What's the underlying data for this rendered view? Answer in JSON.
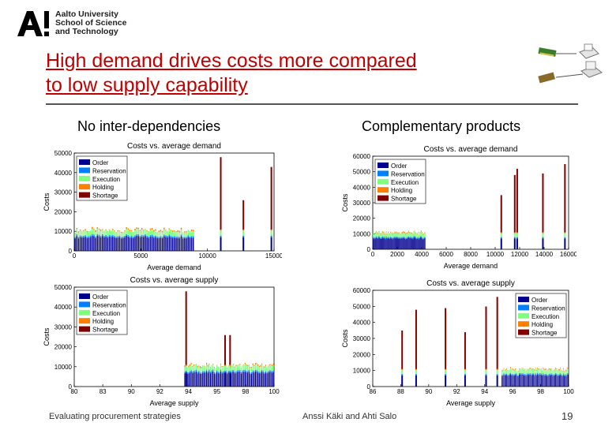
{
  "header": {
    "logo_lines": [
      "Aalto University",
      "School of Science",
      "and Technology"
    ],
    "title_line1": "High demand drives costs more compared",
    "title_line2": "to low supply capability"
  },
  "columns": {
    "left": "No inter-dependencies",
    "right": "Complementary products"
  },
  "footer": {
    "left": "Evaluating procurement strategies",
    "middle": "Anssi Käki and Ahti Salo",
    "page": "19"
  },
  "colors": {
    "title": "#c00000",
    "order": "#00008f",
    "reservation": "#0080ff",
    "execution": "#80ff80",
    "holding": "#ff8000",
    "shortage": "#800000"
  },
  "chart_data": [
    {
      "id": "left-demand",
      "type": "bar",
      "stacked": true,
      "title": "Costs vs. average demand",
      "xlabel": "Average demand",
      "ylabel": "Costs",
      "xlim": [
        0,
        15000
      ],
      "ylim": [
        0,
        50000
      ],
      "xticks": [
        "0",
        "5000",
        "10000",
        "15000"
      ],
      "yticks": [
        "0",
        "10000",
        "20000",
        "30000",
        "40000",
        "50000"
      ],
      "legend": [
        "Order",
        "Reservation",
        "Execution",
        "Holding",
        "Shortage"
      ],
      "legend_position": "top-left",
      "base_band": {
        "from": 0,
        "to": 9000,
        "order": 7000,
        "reservation": 800,
        "execution": 2500,
        "holding": 600
      },
      "spikes": [
        {
          "x": 11000,
          "shortage": 37000
        },
        {
          "x": 12700,
          "shortage": 15000
        },
        {
          "x": 14800,
          "shortage": 32000
        }
      ]
    },
    {
      "id": "left-supply",
      "type": "bar",
      "stacked": true,
      "title": "Costs vs. average supply",
      "xlabel": "Average supply",
      "ylabel": "Costs",
      "xlim": [
        80,
        100
      ],
      "ylim": [
        0,
        50000
      ],
      "xticks": [
        "80",
        "83",
        "90",
        "92",
        "94",
        "95",
        "98",
        "100"
      ],
      "yticks": [
        "0",
        "10000",
        "20000",
        "30000",
        "40000",
        "50000"
      ],
      "legend": [
        "Order",
        "Reservation",
        "Execution",
        "Holding",
        "Shortage"
      ],
      "legend_position": "top-left",
      "base_band": {
        "from": 91,
        "to": 100,
        "order": 7000,
        "reservation": 800,
        "execution": 2500,
        "holding": 600
      },
      "spikes": [
        {
          "x": 91.2,
          "shortage": 37000
        },
        {
          "x": 95.1,
          "shortage": 15000
        },
        {
          "x": 95.6,
          "shortage": 15000
        }
      ]
    },
    {
      "id": "right-demand",
      "type": "bar",
      "stacked": true,
      "title": "Costs vs. average demand",
      "xlabel": "Average demand",
      "ylabel": "Costs",
      "xlim": [
        0,
        16000
      ],
      "ylim": [
        0,
        60000
      ],
      "xticks": [
        "0",
        "2000",
        "4000",
        "6000",
        "8000",
        "10000",
        "12000",
        "14000",
        "16000"
      ],
      "yticks": [
        "0",
        "10000",
        "20000",
        "30000",
        "40000",
        "50000",
        "60000"
      ],
      "legend": [
        "Order",
        "Reservation",
        "Execution",
        "Holding",
        "Shortage"
      ],
      "legend_position": "top-left",
      "base_band": {
        "from": 0,
        "to": 4300,
        "order": 7000,
        "reservation": 800,
        "execution": 2500,
        "holding": 600
      },
      "spikes": [
        {
          "x": 10500,
          "shortage": 24000
        },
        {
          "x": 11600,
          "shortage": 37000
        },
        {
          "x": 11800,
          "shortage": 41000
        },
        {
          "x": 13900,
          "shortage": 38000
        },
        {
          "x": 15700,
          "shortage": 44000
        }
      ]
    },
    {
      "id": "right-supply",
      "type": "bar",
      "stacked": true,
      "title": "Costs vs. average supply",
      "xlabel": "Average supply",
      "ylabel": "Costs",
      "xlim": [
        86,
        100
      ],
      "ylim": [
        0,
        60000
      ],
      "xticks": [
        "86",
        "88",
        "90",
        "92",
        "94",
        "96",
        "98",
        "100"
      ],
      "yticks": [
        "0",
        "10000",
        "20000",
        "30000",
        "40000",
        "50000",
        "60000"
      ],
      "legend": [
        "Order",
        "Reservation",
        "Execution",
        "Holding",
        "Shortage"
      ],
      "legend_position": "top-right",
      "base_band": {
        "from": 95.2,
        "to": 100,
        "order": 7000,
        "reservation": 800,
        "execution": 2500,
        "holding": 600
      },
      "spikes": [
        {
          "x": 88.1,
          "shortage": 24000
        },
        {
          "x": 89.1,
          "shortage": 37000
        },
        {
          "x": 91.2,
          "shortage": 38000
        },
        {
          "x": 92.6,
          "shortage": 23000
        },
        {
          "x": 94.1,
          "shortage": 39000
        },
        {
          "x": 94.9,
          "shortage": 45000
        }
      ]
    }
  ]
}
